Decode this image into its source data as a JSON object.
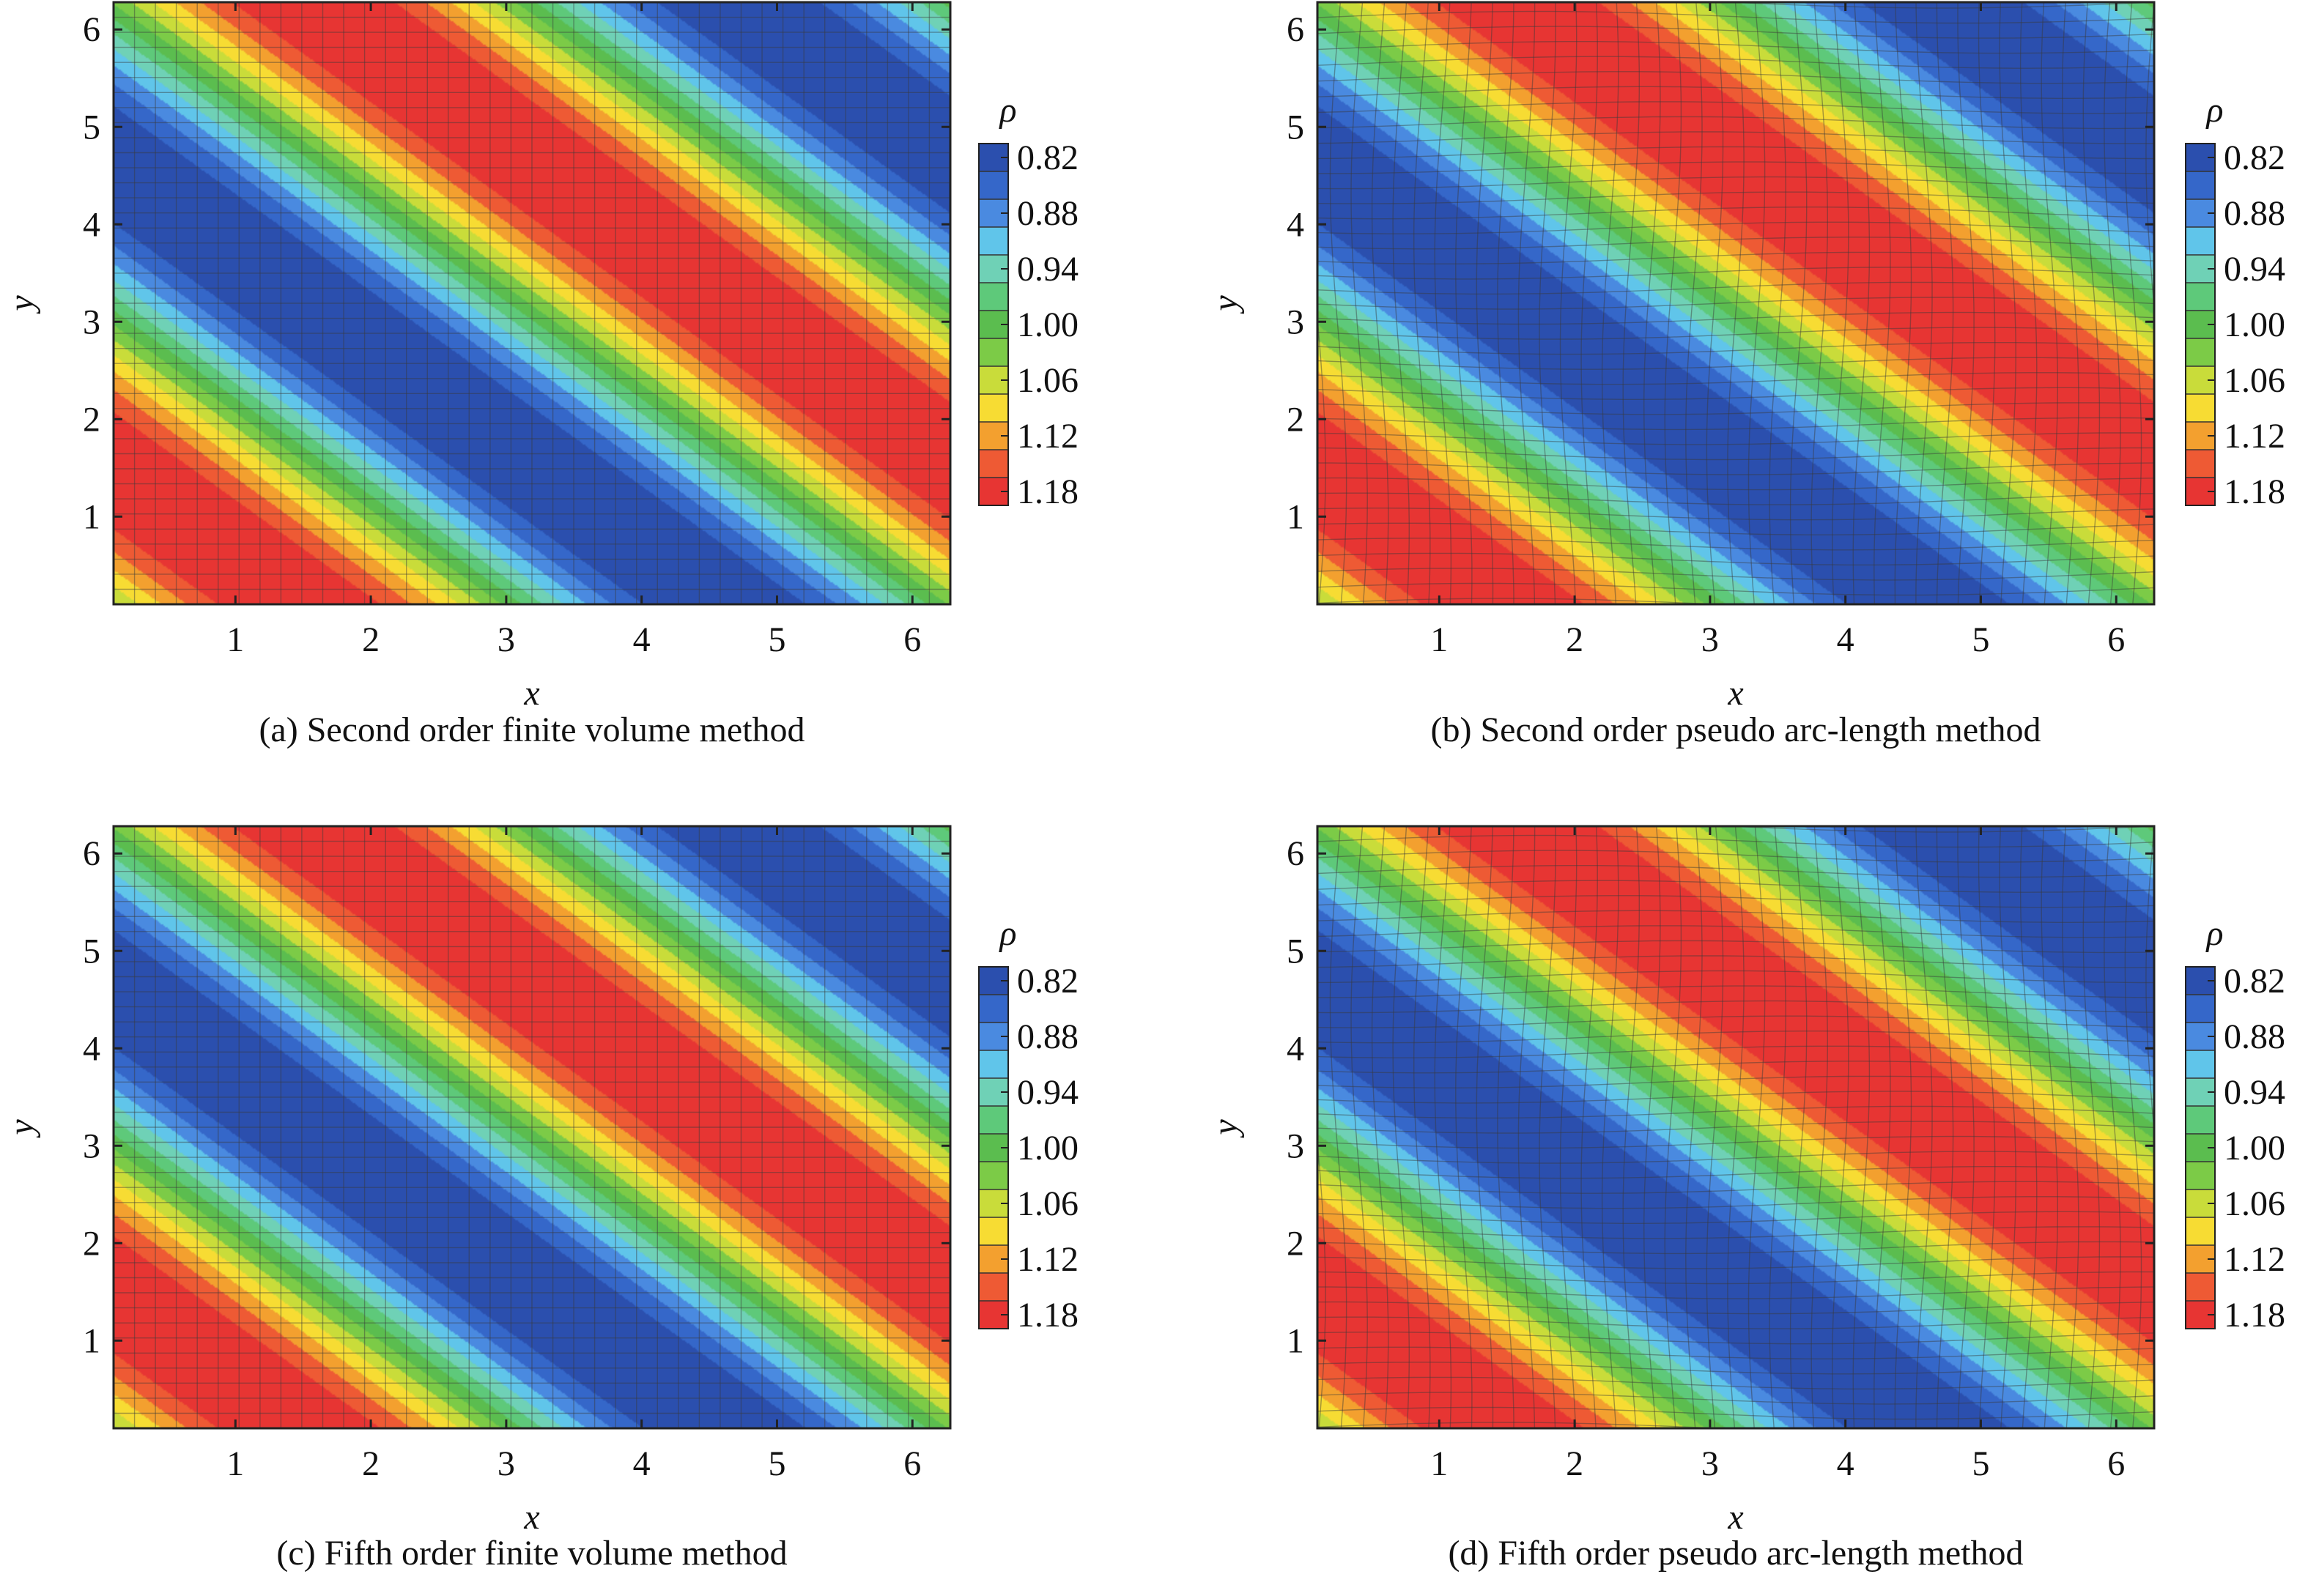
{
  "colorbar": {
    "symbol": "ρ",
    "tick_labels": [
      "0.82",
      "0.88",
      "0.94",
      "1.00",
      "1.06",
      "1.12",
      "1.18"
    ],
    "levels_top_to_bottom": [
      0.82,
      0.85,
      0.88,
      0.91,
      0.94,
      0.97,
      1.0,
      1.03,
      1.06,
      1.09,
      1.12,
      1.15,
      1.18
    ],
    "colors_top_to_bottom": [
      "#2b4fae",
      "#3567c9",
      "#4a8ae0",
      "#60c5ea",
      "#6fd1b6",
      "#5ec97a",
      "#5bbd4f",
      "#7ccb47",
      "#c9dc3a",
      "#f7dc33",
      "#f3a02f",
      "#ee5a34",
      "#e73533"
    ]
  },
  "chart_data": [
    {
      "type": "heatmap",
      "caption": "(a) Second order finite volume method",
      "xlabel": "x",
      "ylabel": "y",
      "xlim": [
        0.1,
        6.28
      ],
      "ylim": [
        0.1,
        6.28
      ],
      "x_ticks": [
        1,
        2,
        3,
        4,
        5,
        6
      ],
      "y_ticks": [
        1,
        2,
        3,
        4,
        5,
        6
      ],
      "field": "rho = 1 + 0.2 sin(x + y)",
      "rho_range": [
        0.8,
        1.2
      ],
      "grid": "uniform",
      "grid_cells": 40,
      "legend": "right"
    },
    {
      "type": "heatmap",
      "caption": "(b) Second order pseudo arc-length method",
      "xlabel": "x",
      "ylabel": "y",
      "xlim": [
        0.1,
        6.28
      ],
      "ylim": [
        0.1,
        6.28
      ],
      "x_ticks": [
        1,
        2,
        3,
        4,
        5,
        6
      ],
      "y_ticks": [
        1,
        2,
        3,
        4,
        5,
        6
      ],
      "field": "rho = 1 + 0.2 sin(x + y)",
      "rho_range": [
        0.8,
        1.2
      ],
      "grid": "adaptive moving mesh",
      "grid_cells": 40,
      "legend": "right"
    },
    {
      "type": "heatmap",
      "caption": "(c) Fifth order finite volume method",
      "xlabel": "x",
      "ylabel": "y",
      "xlim": [
        0.1,
        6.28
      ],
      "ylim": [
        0.1,
        6.28
      ],
      "x_ticks": [
        1,
        2,
        3,
        4,
        5,
        6
      ],
      "y_ticks": [
        1,
        2,
        3,
        4,
        5,
        6
      ],
      "field": "rho = 1 + 0.2 sin(x + y)",
      "rho_range": [
        0.8,
        1.2
      ],
      "grid": "uniform",
      "grid_cells": 40,
      "legend": "right"
    },
    {
      "type": "heatmap",
      "caption": "(d) Fifth order pseudo arc-length method",
      "xlabel": "x",
      "ylabel": "y",
      "xlim": [
        0.1,
        6.28
      ],
      "ylim": [
        0.1,
        6.28
      ],
      "x_ticks": [
        1,
        2,
        3,
        4,
        5,
        6
      ],
      "y_ticks": [
        1,
        2,
        3,
        4,
        5,
        6
      ],
      "field": "rho = 1 + 0.2 sin(x + y)",
      "rho_range": [
        0.8,
        1.2
      ],
      "grid": "adaptive moving mesh",
      "grid_cells": 40,
      "legend": "right"
    }
  ]
}
